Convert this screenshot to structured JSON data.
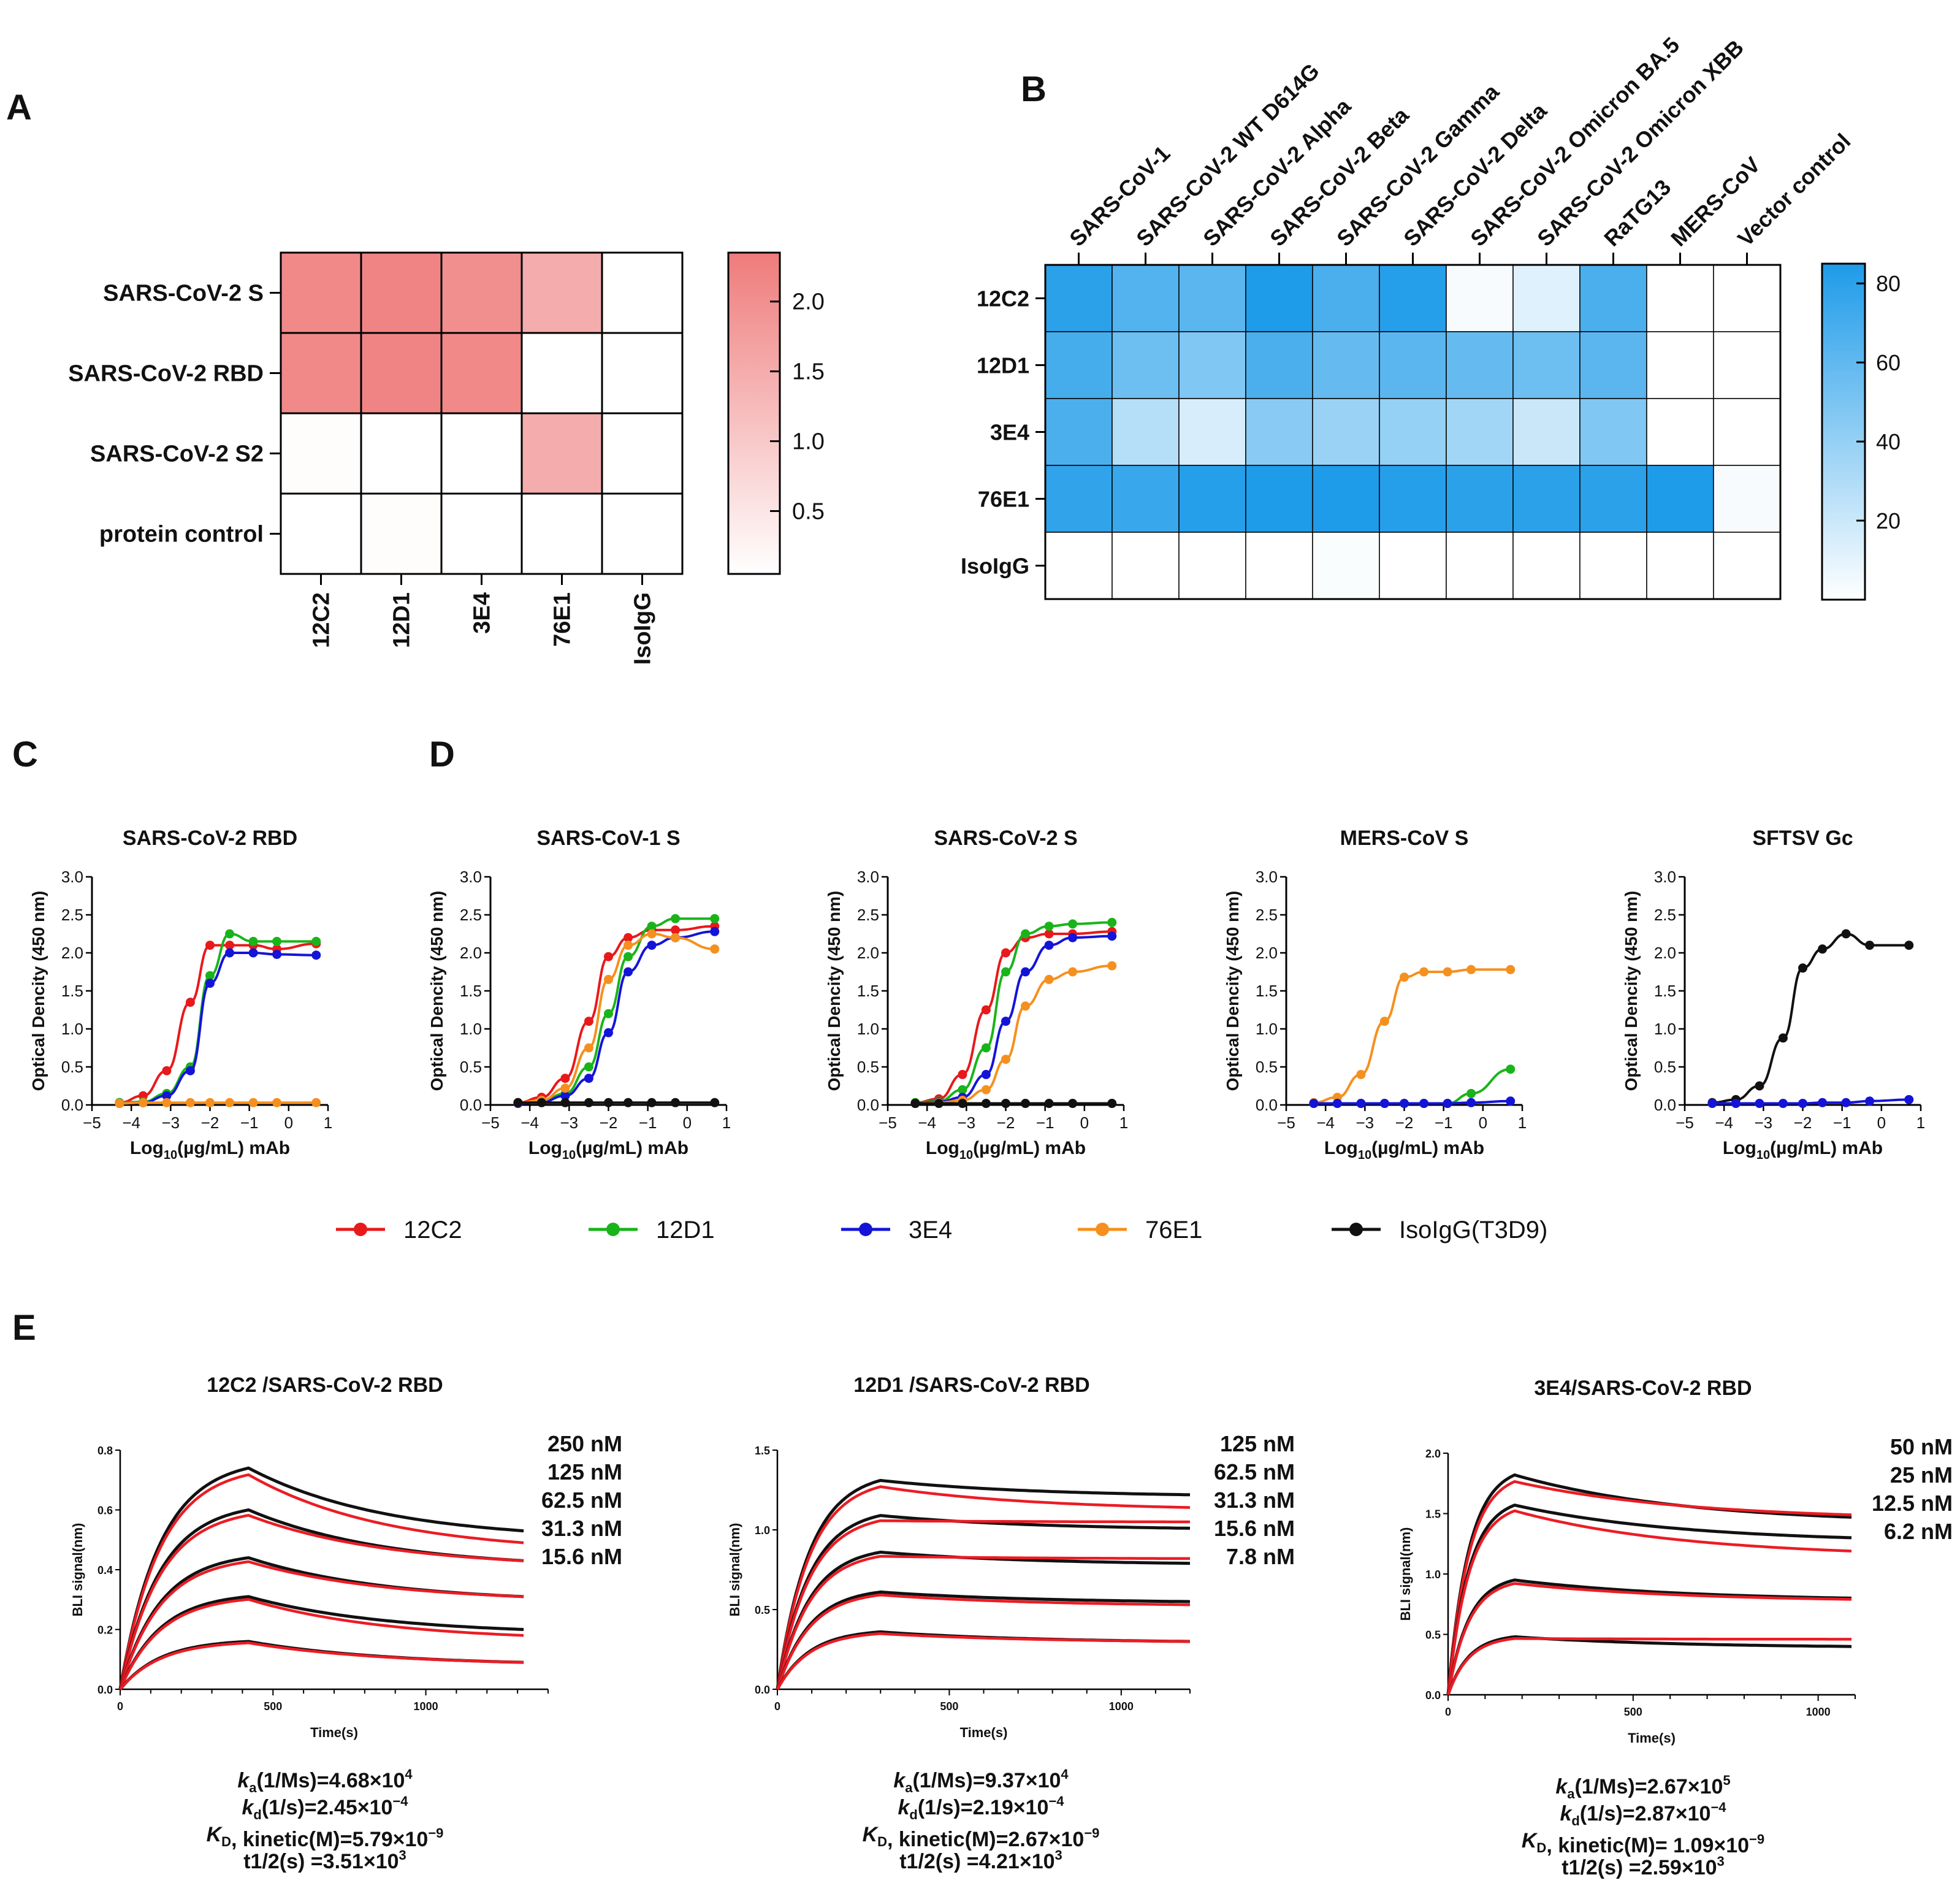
{
  "colors": {
    "12C2": "#e8191b",
    "12D1": "#19b41a",
    "3E4": "#1414d8",
    "76E1": "#f5901e",
    "IsoIgG(T3D9)": "#111111",
    "heat_a": "#ef7b7b",
    "heat_b": "#1e9be9",
    "fit": "#ec1c24",
    "trace": "#111111"
  },
  "panels": {
    "A": "A",
    "B": "B",
    "C": "C",
    "D": "D",
    "E": "E"
  },
  "chart_data": [
    {
      "id": "A",
      "type": "heatmap",
      "rows": [
        "SARS-CoV-2 S",
        "SARS-CoV-2 RBD",
        "SARS-CoV-2 S2",
        "protein control"
      ],
      "columns": [
        "12C2",
        "12D1",
        "3E4",
        "76E1",
        "IsoIgG"
      ],
      "values": [
        [
          2.1,
          2.2,
          2.0,
          1.5,
          0.05
        ],
        [
          2.1,
          2.2,
          2.1,
          0.05,
          0.05
        ],
        [
          0.1,
          0.05,
          0.05,
          1.5,
          0.05
        ],
        [
          0.05,
          0.1,
          0.05,
          0.05,
          0.05
        ]
      ],
      "colorbar": {
        "min": 0.05,
        "max": 2.35,
        "ticks": [
          2.0,
          1.5,
          1.0,
          0.5
        ],
        "tick_labels": [
          "2.0",
          "1.5",
          "1.0",
          "0.5"
        ]
      }
    },
    {
      "id": "B",
      "type": "heatmap",
      "rows": [
        "12C2",
        "12D1",
        "3E4",
        "76E1",
        "IsoIgG"
      ],
      "columns": [
        "SARS-CoV-1",
        "SARS-CoV-2 WT D614G",
        "SARS-CoV-2 Alpha",
        "SARS-CoV-2 Beta",
        "SARS-CoV-2 Gamma",
        "SARS-CoV-2 Delta",
        "SARS-CoV-2 Omicron BA.5",
        "SARS-CoV-2 Omicron XBB",
        "RaTG13",
        "MERS-CoV",
        "Vector control"
      ],
      "values": [
        [
          80,
          65,
          62,
          85,
          68,
          82,
          3,
          12,
          68,
          0,
          0
        ],
        [
          70,
          55,
          48,
          68,
          58,
          62,
          58,
          55,
          62,
          0,
          0
        ],
        [
          68,
          28,
          15,
          45,
          38,
          40,
          35,
          20,
          48,
          0,
          0
        ],
        [
          78,
          75,
          82,
          85,
          85,
          82,
          80,
          80,
          80,
          85,
          3
        ],
        [
          0,
          0,
          0,
          0,
          2,
          0,
          0,
          0,
          0,
          0,
          0
        ]
      ],
      "colorbar": {
        "min": 0,
        "max": 85,
        "ticks": [
          80,
          60,
          40,
          20
        ],
        "tick_labels": [
          "80",
          "60",
          "40",
          "20"
        ]
      }
    },
    {
      "id": "C",
      "type": "line",
      "title": "SARS-CoV-2 RBD",
      "xlabel": "Log10(µg/mL) mAb",
      "ylabel": "Optical Dencity (450 nm)",
      "xlim": [
        -5,
        1
      ],
      "ylim": [
        0,
        3
      ],
      "xticks": [
        -5,
        -4,
        -3,
        -2,
        -1,
        0,
        1
      ],
      "yticks": [
        0,
        0.5,
        1.0,
        1.5,
        2.0,
        2.5,
        3.0
      ],
      "x": [
        -4.3,
        -3.7,
        -3.1,
        -2.5,
        -2.0,
        -1.5,
        -0.9,
        -0.3,
        0.7
      ],
      "series": [
        {
          "name": "12C2",
          "values": [
            0.03,
            0.12,
            0.45,
            1.35,
            2.1,
            2.1,
            2.1,
            2.05,
            2.12
          ]
        },
        {
          "name": "12D1",
          "values": [
            0.03,
            0.04,
            0.15,
            0.5,
            1.7,
            2.25,
            2.15,
            2.15,
            2.15
          ]
        },
        {
          "name": "3E4",
          "values": [
            0.02,
            0.03,
            0.12,
            0.45,
            1.6,
            2.0,
            2.0,
            1.98,
            1.97
          ]
        },
        {
          "name": "76E1",
          "values": [
            0.02,
            0.03,
            0.03,
            0.03,
            0.03,
            0.03,
            0.03,
            0.03,
            0.03
          ]
        }
      ]
    },
    {
      "id": "D1",
      "type": "line",
      "title": "SARS-CoV-1 S",
      "xlabel": "Log10(µg/mL) mAb",
      "ylabel": "Optical Dencity (450 nm)",
      "xlim": [
        -5,
        1
      ],
      "ylim": [
        0,
        3
      ],
      "xticks": [
        -5,
        -4,
        -3,
        -2,
        -1,
        0,
        1
      ],
      "yticks": [
        0,
        0.5,
        1.0,
        1.5,
        2.0,
        2.5,
        3.0
      ],
      "x": [
        -4.3,
        -3.7,
        -3.1,
        -2.5,
        -2.0,
        -1.5,
        -0.9,
        -0.3,
        0.7
      ],
      "series": [
        {
          "name": "12C2",
          "values": [
            0.03,
            0.1,
            0.35,
            1.1,
            1.95,
            2.2,
            2.3,
            2.3,
            2.35
          ]
        },
        {
          "name": "12D1",
          "values": [
            0.03,
            0.05,
            0.15,
            0.5,
            1.2,
            1.95,
            2.35,
            2.45,
            2.45
          ]
        },
        {
          "name": "3E4",
          "values": [
            0.02,
            0.04,
            0.12,
            0.35,
            0.95,
            1.75,
            2.1,
            2.2,
            2.28
          ]
        },
        {
          "name": "76E1",
          "values": [
            0.03,
            0.06,
            0.22,
            0.75,
            1.65,
            2.1,
            2.25,
            2.2,
            2.05
          ]
        },
        {
          "name": "IsoIgG(T3D9)",
          "values": [
            0.03,
            0.03,
            0.03,
            0.03,
            0.03,
            0.03,
            0.03,
            0.03,
            0.03
          ]
        }
      ]
    },
    {
      "id": "D2",
      "type": "line",
      "title": "SARS-CoV-2 S",
      "xlabel": "Log10(µg/mL) mAb",
      "ylabel": "Optical Dencity (450 nm)",
      "xlim": [
        -5,
        1
      ],
      "ylim": [
        0,
        3
      ],
      "xticks": [
        -5,
        -4,
        -3,
        -2,
        -1,
        0,
        1
      ],
      "yticks": [
        0,
        0.5,
        1.0,
        1.5,
        2.0,
        2.5,
        3.0
      ],
      "x": [
        -4.3,
        -3.7,
        -3.1,
        -2.5,
        -2.0,
        -1.5,
        -0.9,
        -0.3,
        0.7
      ],
      "series": [
        {
          "name": "12C2",
          "values": [
            0.03,
            0.08,
            0.4,
            1.25,
            2.0,
            2.2,
            2.25,
            2.25,
            2.28
          ]
        },
        {
          "name": "12D1",
          "values": [
            0.03,
            0.05,
            0.2,
            0.75,
            1.75,
            2.25,
            2.35,
            2.38,
            2.4
          ]
        },
        {
          "name": "3E4",
          "values": [
            0.02,
            0.04,
            0.1,
            0.4,
            1.1,
            1.75,
            2.1,
            2.2,
            2.22
          ]
        },
        {
          "name": "76E1",
          "values": [
            0.02,
            0.03,
            0.06,
            0.2,
            0.6,
            1.3,
            1.65,
            1.75,
            1.83
          ]
        },
        {
          "name": "IsoIgG(T3D9)",
          "values": [
            0.02,
            0.02,
            0.02,
            0.02,
            0.02,
            0.02,
            0.02,
            0.02,
            0.02
          ]
        }
      ]
    },
    {
      "id": "D3",
      "type": "line",
      "title": "MERS-CoV S",
      "xlabel": "Log10(µg/mL) mAb",
      "ylabel": "Optical Dencity (450 nm)",
      "xlim": [
        -5,
        1
      ],
      "ylim": [
        0,
        3
      ],
      "xticks": [
        -5,
        -4,
        -3,
        -2,
        -1,
        0,
        1
      ],
      "yticks": [
        0,
        0.5,
        1.0,
        1.5,
        2.0,
        2.5,
        3.0
      ],
      "x": [
        -4.3,
        -3.7,
        -3.1,
        -2.5,
        -2.0,
        -1.5,
        -0.9,
        -0.3,
        0.7
      ],
      "series": [
        {
          "name": "76E1",
          "values": [
            0.03,
            0.1,
            0.4,
            1.1,
            1.68,
            1.75,
            1.75,
            1.78,
            1.78
          ]
        },
        {
          "name": "12D1",
          "values": [
            0.02,
            0.02,
            0.02,
            0.02,
            0.02,
            0.02,
            0.02,
            0.15,
            0.47
          ]
        },
        {
          "name": "3E4",
          "values": [
            0.02,
            0.02,
            0.02,
            0.02,
            0.02,
            0.02,
            0.02,
            0.03,
            0.05
          ]
        }
      ]
    },
    {
      "id": "D4",
      "type": "line",
      "title": "SFTSV Gc",
      "xlabel": "Log10(µg/mL) mAb",
      "ylabel": "Optical Dencity (450 nm)",
      "xlim": [
        -5,
        1
      ],
      "ylim": [
        0,
        3
      ],
      "xticks": [
        -5,
        -4,
        -3,
        -2,
        -1,
        0,
        1
      ],
      "yticks": [
        0,
        0.5,
        1.0,
        1.5,
        2.0,
        2.5,
        3.0
      ],
      "x": [
        -4.3,
        -3.7,
        -3.1,
        -2.5,
        -2.0,
        -1.5,
        -0.9,
        -0.3,
        0.7
      ],
      "series": [
        {
          "name": "IsoIgG(T3D9)",
          "values": [
            0.03,
            0.07,
            0.25,
            0.88,
            1.8,
            2.05,
            2.25,
            2.1,
            2.1
          ]
        },
        {
          "name": "3E4",
          "values": [
            0.02,
            0.02,
            0.02,
            0.02,
            0.02,
            0.03,
            0.03,
            0.05,
            0.07
          ]
        }
      ]
    },
    {
      "id": "E1",
      "type": "line",
      "title": "12C2 /SARS-CoV-2 RBD",
      "xlabel": "Time(s)",
      "ylabel": "BLI signal(nm)",
      "xlim": [
        0,
        1400
      ],
      "ylim": [
        0,
        0.8
      ],
      "xticks": [
        0,
        500,
        1000
      ],
      "yticks": [
        0.0,
        0.2,
        0.4,
        0.6,
        0.8
      ],
      "ytick_labels": [
        "0.0",
        "0.2",
        "0.4",
        "0.6",
        "0.8"
      ],
      "assoc_end": 420,
      "t_end": 1320,
      "concentrations": [
        "250 nM",
        "125 nM",
        "62.5 nM",
        "31.3 nM",
        "15.6 nM"
      ],
      "plateau": [
        0.74,
        0.6,
        0.44,
        0.31,
        0.16
      ],
      "end_trace": [
        0.53,
        0.43,
        0.31,
        0.2,
        0.09
      ],
      "end_fit": [
        0.49,
        0.43,
        0.31,
        0.18,
        0.09
      ],
      "stats": [
        "=4.68×10",
        "=2.45×10",
        ", kinetic(M)=5.79×10",
        "t1/2(s) =3.51×10"
      ],
      "exps": [
        "4",
        "−4",
        "−9",
        "3"
      ]
    },
    {
      "id": "E2",
      "type": "line",
      "title": "12D1 /SARS-CoV-2 RBD",
      "xlabel": "Time(s)",
      "ylabel": "BLI signal(nm)",
      "xlim": [
        0,
        1200
      ],
      "ylim": [
        0,
        1.5
      ],
      "xticks": [
        0,
        500,
        1000
      ],
      "yticks": [
        0.0,
        0.5,
        1.0,
        1.5
      ],
      "ytick_labels": [
        "0.0",
        "0.5",
        "1.0",
        "1.5"
      ],
      "assoc_end": 300,
      "t_end": 1200,
      "concentrations": [
        "125 nM",
        "62.5 nM",
        "31.3 nM",
        "15.6 nM",
        "7.8 nM"
      ],
      "plateau": [
        1.31,
        1.09,
        0.86,
        0.61,
        0.36
      ],
      "end_trace": [
        1.22,
        1.01,
        0.79,
        0.55,
        0.3
      ],
      "end_fit": [
        1.14,
        1.05,
        0.82,
        0.53,
        0.3
      ],
      "stats": [
        "=9.37×10",
        "=2.19×10",
        ", kinetic(M)=2.67×10",
        "t1/2(s) =4.21×10"
      ],
      "exps": [
        "4",
        "−4",
        "−9",
        "3"
      ]
    },
    {
      "id": "E3",
      "type": "line",
      "title": "3E4/SARS-CoV-2 RBD",
      "xlabel": "Time(s)",
      "ylabel": "BLI signal(nm)",
      "xlim": [
        0,
        1100
      ],
      "ylim": [
        0,
        2.0
      ],
      "xticks": [
        0,
        500,
        1000
      ],
      "yticks": [
        0.0,
        0.5,
        1.0,
        1.5,
        2.0
      ],
      "ytick_labels": [
        "0.0",
        "0.5",
        "1.0",
        "1.5",
        "2.0"
      ],
      "assoc_end": 180,
      "t_end": 1090,
      "concentrations": [
        "50 nM",
        "25 nM",
        "12.5 nM",
        "6.2 nM"
      ],
      "plateau": [
        1.82,
        1.57,
        0.95,
        0.48
      ],
      "end_trace": [
        1.47,
        1.3,
        0.8,
        0.4
      ],
      "end_fit": [
        1.49,
        1.19,
        0.79,
        0.46
      ],
      "stats": [
        "=2.67×10",
        "=2.87×10",
        ", kinetic(M)= 1.09×10",
        "t1/2(s) =2.59×10"
      ],
      "exps": [
        "5",
        "−4",
        "−9",
        "3"
      ]
    }
  ],
  "legend": [
    "12C2",
    "12D1",
    "3E4",
    "76E1",
    "IsoIgG(T3D9)"
  ],
  "stat_symbols": {
    "ka": "k",
    "ka_sub": "a",
    "ka_unit": "(1/Ms)",
    "kd": "k",
    "kd_sub": "d",
    "kd_unit": "(1/s)",
    "KD": "K",
    "KD_sub": "D"
  }
}
